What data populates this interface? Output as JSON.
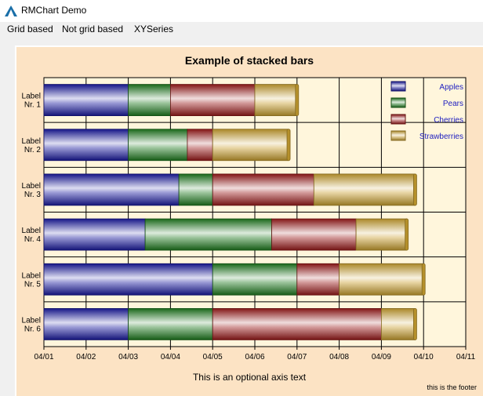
{
  "window": {
    "title": "RMChart Demo",
    "icon": "rmchart-app-icon"
  },
  "menu": {
    "items": [
      "Grid based",
      "Not grid based",
      "XYSeries"
    ]
  },
  "chart_data": {
    "type": "bar",
    "orientation": "horizontal",
    "stacked": true,
    "title": "Example of stacked bars",
    "xlabel": "This is an optional axis text",
    "footer": "this is the footer",
    "categories": [
      "Label Nr. 1",
      "Label Nr. 2",
      "Label Nr. 3",
      "Label Nr. 4",
      "Label Nr. 5",
      "Label Nr. 6"
    ],
    "x_tick_labels": [
      "04/01",
      "04/02",
      "04/03",
      "04/04",
      "04/05",
      "04/06",
      "04/07",
      "04/08",
      "04/09",
      "04/10",
      "04/11"
    ],
    "xlim": [
      0,
      10
    ],
    "grid": true,
    "legend_position": "top-right",
    "series": [
      {
        "name": "Apples",
        "color": "#1a1aa0",
        "values": [
          2,
          2,
          3.2,
          2.4,
          4,
          2
        ]
      },
      {
        "name": "Pears",
        "color": "#1e7a1e",
        "values": [
          1,
          1.4,
          0.8,
          3,
          2,
          2
        ]
      },
      {
        "name": "Cherries",
        "color": "#9a1a1a",
        "values": [
          2,
          0.6,
          2.4,
          2,
          1,
          4
        ]
      },
      {
        "name": "Strawberries",
        "color": "#c9a030",
        "values": [
          1,
          1.8,
          2.4,
          1.2,
          2,
          0.8
        ]
      }
    ],
    "colors": {
      "plot_background": "#fff6dc",
      "frame_background": "#fce3c4",
      "legend_text": "#2020c0"
    }
  }
}
